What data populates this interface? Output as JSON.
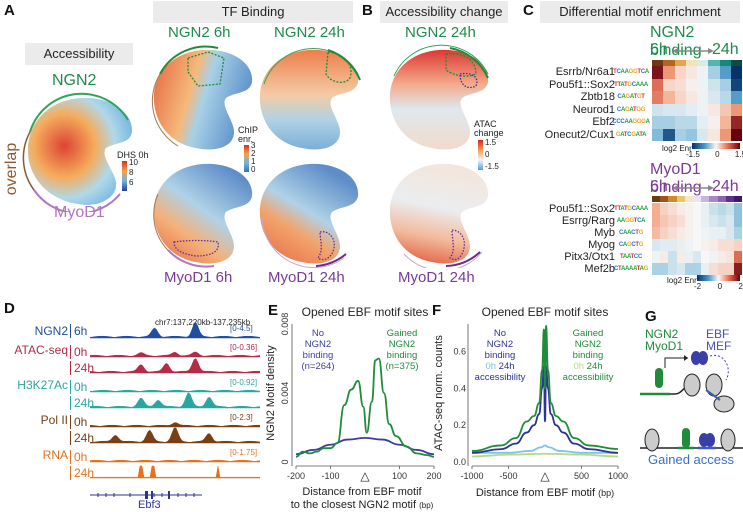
{
  "panels": {
    "A": {
      "label": "A",
      "accessibility_header": "Accessibility",
      "tf_binding_header": "TF Binding",
      "umap_labels": {
        "ngn2": "NGN2",
        "overlap": "overlap",
        "myod1": "MyoD1"
      },
      "dhs_legend": {
        "title": "DHS 0h",
        "ticks": [
          "10",
          "8",
          "6"
        ]
      },
      "chip_legend": {
        "title1": "ChIP",
        "title2": "enr.",
        "ticks": [
          "3",
          "2",
          "1",
          "0"
        ]
      },
      "tf_titles": [
        "NGN2 6h",
        "NGN2 24h",
        "MyoD1 6h",
        "MyoD1 24h"
      ]
    },
    "B": {
      "label": "B",
      "header": "Accessibility change",
      "titles": [
        "NGN2 24h",
        "MyoD1 24h"
      ],
      "legend": {
        "title1": "ATAC",
        "title2": "change",
        "ticks": [
          "1.5",
          "0",
          "-1.5"
        ]
      }
    },
    "C": {
      "label": "C",
      "header": "Differential motif enrichment",
      "ngn2": {
        "title": "NGN2 binding",
        "from": "6h",
        "to": "24h",
        "motifs": [
          "Esrrb/Nr6a1",
          "Pou5f1::Sox2",
          "Zbtb18",
          "Neurod1",
          "Ebf2",
          "Onecut2/Cux1"
        ],
        "logos": [
          "TCAAGGTCA",
          "TTATGCAAA",
          "CAGATGT",
          "CAGATGG",
          "CCCAAGGGA",
          "GATCGATA"
        ],
        "legend": {
          "title": "log2 Enr",
          "ticks": [
            "-1.5",
            "0",
            "1.5"
          ],
          "range": [
            -1.5,
            1.5
          ]
        },
        "timepoint_colors": [
          "#6b3a12",
          "#b5651d",
          "#e0a84a",
          "#f5e3b8",
          "#d6ecea",
          "#4fb8ad",
          "#118a7e",
          "#0b4d40"
        ],
        "values": [
          [
            1.4,
            0.6,
            0.2,
            0.1,
            -0.05,
            -0.4,
            -0.9,
            -1.5
          ],
          [
            0.9,
            0.2,
            0.15,
            0.05,
            -0.05,
            -0.2,
            -0.4,
            -1.4
          ],
          [
            0.8,
            0.4,
            0.2,
            0.1,
            -0.05,
            -0.15,
            -0.3,
            -0.9
          ],
          [
            -0.2,
            -0.15,
            -0.15,
            -0.1,
            -0.05,
            0.1,
            0.3,
            0.6
          ],
          [
            -0.4,
            -0.4,
            -0.3,
            -0.3,
            -0.1,
            0.05,
            0.4,
            1.3
          ],
          [
            -0.6,
            -1.3,
            -0.4,
            -0.5,
            -0.15,
            0.1,
            0.6,
            1.6
          ]
        ]
      },
      "myod1": {
        "title": "MyoD1 binding",
        "from": "6h",
        "to": "24h",
        "motifs": [
          "Pou5f1::Sox2",
          "Esrrg/Rarg",
          "Myb",
          "Myog",
          "Pitx3/Otx1",
          "Mef2b"
        ],
        "logos": [
          "TTATGCAAA",
          "AAGGTCA",
          "CAACTG",
          "CAGCTG",
          "TAATCC",
          "CTAAAATAG"
        ],
        "legend": {
          "title": "log2 Enr",
          "ticks": [
            "-2",
            "0",
            "2"
          ],
          "range": [
            -2,
            2
          ]
        },
        "timepoint_colors": [
          "#6b3a12",
          "#a0521a",
          "#d08a2a",
          "#eec46a",
          "#f6e6c8",
          "#ece4f2",
          "#c8b4dc",
          "#a788c6",
          "#8a63b3",
          "#5e2f90",
          "#3d1870"
        ],
        "values": [
          [
            0.6,
            0.3,
            0.2,
            0.1,
            0.05,
            0.0,
            -0.1,
            -0.3,
            -0.4,
            -0.3,
            -0.7
          ],
          [
            0.6,
            0.4,
            0.3,
            0.2,
            0.05,
            0.0,
            -0.1,
            -0.2,
            -0.3,
            -0.2,
            -0.7
          ],
          [
            0.5,
            0.3,
            0.2,
            0.1,
            0.05,
            0.0,
            -0.05,
            -0.1,
            -0.1,
            -0.2,
            -0.5
          ],
          [
            -0.2,
            -0.15,
            -0.15,
            -0.1,
            -0.05,
            0.0,
            0.05,
            0.1,
            0.2,
            0.2,
            0.3
          ],
          [
            -0.05,
            0.1,
            -0.3,
            0.1,
            -0.1,
            -0.2,
            0.0,
            -0.05,
            0.1,
            0.15,
            1.2
          ],
          [
            -0.5,
            -0.5,
            -0.3,
            -0.2,
            -0.5,
            -0.5,
            -0.1,
            0.2,
            0.3,
            0.3,
            1.8
          ]
        ]
      }
    },
    "D": {
      "label": "D",
      "locus": "chr7:137,220kb-137,235kb",
      "gene": "Ebf3",
      "tracks": [
        {
          "group": "NGN2",
          "time": "6h",
          "range": "[0-4.5]",
          "color": "#1f4e9c"
        },
        {
          "group": "ATAC-seq",
          "time": "0h",
          "range": "[0-0.36]",
          "color": "#b52a45"
        },
        {
          "group": "",
          "time": "24h",
          "range": "",
          "color": "#b52a45"
        },
        {
          "group": "H3K27Ac",
          "time": "0h",
          "range": "[0-0.92]",
          "color": "#2aa6a0"
        },
        {
          "group": "",
          "time": "24h",
          "range": "",
          "color": "#2aa6a0"
        },
        {
          "group": "Pol II",
          "time": "0h",
          "range": "[0-2.3]",
          "color": "#7a3e12"
        },
        {
          "group": "",
          "time": "24h",
          "range": "",
          "color": "#7a3e12"
        },
        {
          "group": "RNA",
          "time": "0h",
          "range": "[0-1.75]",
          "color": "#e5711c"
        },
        {
          "group": "",
          "time": "24h",
          "range": "",
          "color": "#e5711c"
        }
      ]
    },
    "E": {
      "label": "E"
    },
    "F": {
      "label": "F"
    },
    "G": {
      "label": "G",
      "tf1": "NGN2",
      "tf2": "MyoD1",
      "partner1": "EBF",
      "partner2": "MEF",
      "caption": "Gained access"
    }
  },
  "chart_data": [
    {
      "panel": "E",
      "type": "line",
      "title": "Opened EBF motif sites",
      "xlabel": "Distance from EBF motif to the closest NGN2 motif",
      "xunit": "(bp)",
      "ylabel": "NGN2 Motif density",
      "xlim": [
        -200,
        200
      ],
      "ylim": [
        0,
        0.008
      ],
      "xticks": [
        "-200",
        "-100",
        "100",
        "200"
      ],
      "yticks": [
        "0",
        "0.004",
        "0.008"
      ],
      "marker": "△",
      "series": [
        {
          "name": "No NGN2 binding (n=264)",
          "label_lines": [
            "No",
            "NGN2",
            "binding",
            "(n=264)"
          ],
          "color": "#3a3f9e",
          "x": [
            -200,
            -150,
            -100,
            -50,
            0,
            50,
            100,
            150,
            200
          ],
          "y": [
            0.00045,
            0.0007,
            0.001,
            0.0013,
            0.0014,
            0.0013,
            0.001,
            0.0007,
            0.00045
          ]
        },
        {
          "name": "Gained NGN2 binding (n=375)",
          "label_lines": [
            "Gained",
            "NGN2",
            "binding",
            "(n=375)"
          ],
          "color": "#1f8c3a",
          "x": [
            -200,
            -180,
            -160,
            -140,
            -120,
            -100,
            -80,
            -60,
            -40,
            -20,
            -5,
            5,
            20,
            30,
            40,
            55,
            70,
            90,
            120,
            150,
            180,
            200
          ],
          "y": [
            0.0003,
            0.0006,
            0.0005,
            0.0006,
            0.0008,
            0.0008,
            0.0011,
            0.0033,
            0.0042,
            0.0047,
            0.0032,
            0.0017,
            0.0035,
            0.0059,
            0.006,
            0.004,
            0.0022,
            0.0015,
            0.0009,
            0.0005,
            0.0004,
            0.0003
          ]
        }
      ]
    },
    {
      "panel": "F",
      "type": "line",
      "title": "Opened EBF motif sites",
      "xlabel": "Distance from EBF motif",
      "xunit": "(bp)",
      "ylabel": "ATAC-seq norm. counts",
      "xlim": [
        -1000,
        1000
      ],
      "ylim": [
        0,
        0.75
      ],
      "xticks": [
        "-1000",
        "-500",
        "500",
        "1000"
      ],
      "yticks": [
        "0.0",
        "0.2",
        "0.4",
        "0.6"
      ],
      "marker": "△",
      "legend_left": {
        "lines": [
          "No",
          "NGN2",
          "binding"
        ],
        "t0": "0h",
        "t24": "24h",
        "suffix": "accessibility"
      },
      "legend_right": {
        "lines": [
          "Gained",
          "NGN2",
          "binding"
        ],
        "t0": "0h",
        "t24": "24h",
        "suffix": "accessibility"
      },
      "series": [
        {
          "name": "No NGN2 binding 0h",
          "color": "#7ec3ea",
          "x": [
            -1000,
            -500,
            -200,
            -50,
            0,
            50,
            200,
            500,
            1000
          ],
          "y": [
            0.05,
            0.05,
            0.06,
            0.08,
            0.09,
            0.08,
            0.06,
            0.05,
            0.05
          ]
        },
        {
          "name": "No NGN2 binding 24h",
          "color": "#2b3491",
          "x": [
            -1000,
            -600,
            -400,
            -250,
            -150,
            -80,
            -40,
            -15,
            0,
            15,
            40,
            80,
            150,
            250,
            400,
            600,
            1000
          ],
          "y": [
            0.05,
            0.07,
            0.1,
            0.16,
            0.2,
            0.26,
            0.4,
            0.52,
            0.22,
            0.52,
            0.4,
            0.26,
            0.2,
            0.16,
            0.1,
            0.07,
            0.05
          ]
        },
        {
          "name": "Gained NGN2 binding 0h",
          "color": "#b5d98a",
          "x": [
            -1000,
            -500,
            0,
            500,
            1000
          ],
          "y": [
            0.03,
            0.04,
            0.045,
            0.04,
            0.03
          ]
        },
        {
          "name": "Gained NGN2 binding 24h",
          "color": "#1f8c3a",
          "x": [
            -1000,
            -600,
            -400,
            -250,
            -150,
            -80,
            -40,
            -15,
            0,
            15,
            40,
            80,
            150,
            250,
            400,
            600,
            1000
          ],
          "y": [
            0.06,
            0.09,
            0.13,
            0.22,
            0.25,
            0.32,
            0.5,
            0.72,
            0.4,
            0.74,
            0.5,
            0.32,
            0.25,
            0.22,
            0.13,
            0.09,
            0.07
          ]
        }
      ]
    }
  ]
}
